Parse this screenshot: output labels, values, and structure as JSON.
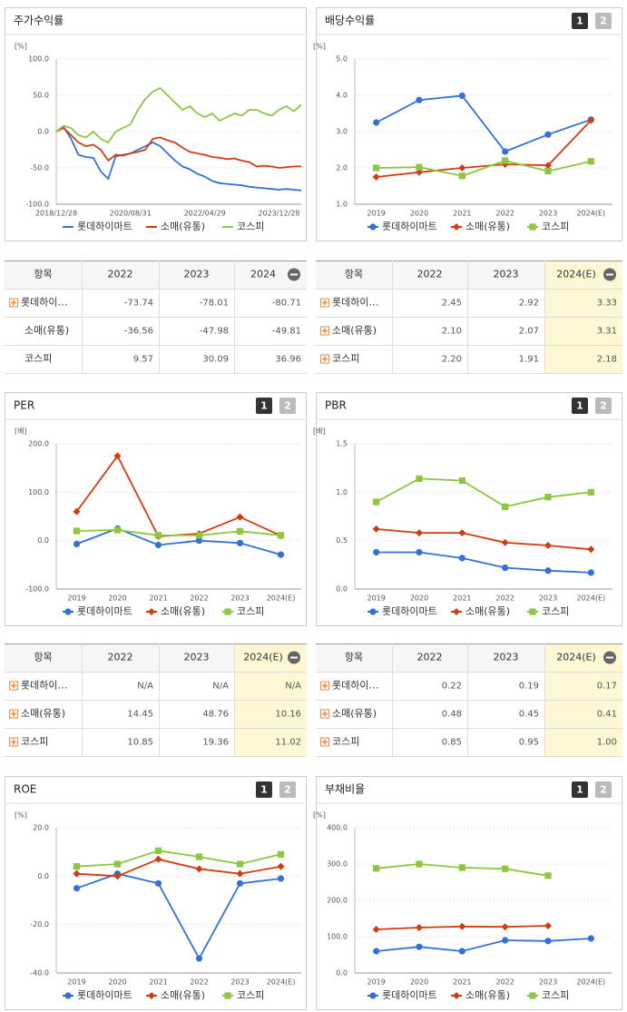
{
  "chart_data": [
    {
      "type": "line",
      "title": "주가수익률",
      "unit_label": "[%]",
      "categories": [
        "2018/12/28",
        null,
        null,
        null,
        null,
        null,
        null,
        null,
        null,
        null,
        "2020/08/31",
        null,
        null,
        null,
        null,
        null,
        null,
        null,
        null,
        null,
        "2022/04/29",
        null,
        null,
        null,
        null,
        null,
        null,
        null,
        null,
        null,
        "2023/12/28",
        null,
        null,
        null
      ],
      "series": [
        {
          "name": "롯데하이마트",
          "color": "#3371d8",
          "values": [
            0,
            6,
            -10,
            -32,
            -35,
            -36,
            -55,
            -65,
            -34,
            -32,
            -30,
            -25,
            -20,
            -15,
            -20,
            -30,
            -40,
            -48,
            -52,
            -58,
            -62,
            -68,
            -71,
            -72,
            -73,
            -74,
            -76,
            -77,
            -78,
            -79,
            -80,
            -79,
            -80,
            -81
          ]
        },
        {
          "name": "소매(유통)",
          "color": "#d23c12",
          "values": [
            0,
            5,
            -5,
            -15,
            -20,
            -18,
            -25,
            -40,
            -32,
            -33,
            -30,
            -28,
            -25,
            -10,
            -8,
            -12,
            -15,
            -22,
            -28,
            -30,
            -32,
            -35,
            -36,
            -38,
            -37,
            -40,
            -42,
            -48,
            -47,
            -48,
            -50,
            -49,
            -48,
            -48
          ]
        },
        {
          "name": "코스피",
          "color": "#8dc63f",
          "values": [
            0,
            8,
            5,
            -5,
            -8,
            0,
            -10,
            -15,
            0,
            5,
            10,
            30,
            45,
            55,
            60,
            50,
            40,
            30,
            35,
            25,
            20,
            25,
            15,
            20,
            25,
            22,
            30,
            30,
            25,
            22,
            30,
            35,
            28,
            37
          ]
        }
      ],
      "ylim": [
        -100,
        100
      ],
      "yticks": [
        {
          "value": -100,
          "label": "-100.0"
        },
        {
          "value": -50,
          "label": "-50.0"
        },
        {
          "value": 0,
          "label": "0.0"
        },
        {
          "value": 50,
          "label": "50.0"
        },
        {
          "value": 100,
          "label": "100.0"
        }
      ],
      "grid": true
    },
    {
      "type": "line",
      "title": "배당수익률",
      "unit_label": "[%]",
      "buttons": [
        "1",
        "2"
      ],
      "categories": [
        "2019",
        "2020",
        "2021",
        "2022",
        "2023",
        "2024(E)"
      ],
      "series": [
        {
          "name": "롯데하이마트",
          "color": "#3371d8",
          "marker": "circle",
          "values": [
            3.25,
            3.87,
            3.99,
            2.45,
            2.92,
            3.33
          ]
        },
        {
          "name": "소매(유통)",
          "color": "#d23c12",
          "marker": "diamond",
          "values": [
            1.75,
            1.88,
            2.0,
            2.1,
            2.07,
            3.31
          ]
        },
        {
          "name": "코스피",
          "color": "#8dc63f",
          "marker": "square",
          "values": [
            2.0,
            2.02,
            1.78,
            2.2,
            1.91,
            2.18
          ]
        }
      ],
      "ylim": [
        1,
        5
      ],
      "yticks": [
        {
          "value": 1,
          "label": "1.0"
        },
        {
          "value": 2,
          "label": "2.0"
        },
        {
          "value": 3,
          "label": "3.0"
        },
        {
          "value": 4,
          "label": "4.0"
        },
        {
          "value": 5,
          "label": "5.0"
        }
      ],
      "grid": true
    },
    {
      "type": "line",
      "title": "PER",
      "unit_label": "[배]",
      "buttons": [
        "1",
        "2"
      ],
      "categories": [
        "2019",
        "2020",
        "2021",
        "2022",
        "2023",
        "2024(E)"
      ],
      "series": [
        {
          "name": "롯데하이마트",
          "color": "#3371d8",
          "marker": "circle",
          "values": [
            -7,
            25,
            -9,
            0,
            -5,
            -29
          ]
        },
        {
          "name": "소매(유통)",
          "color": "#d23c12",
          "marker": "diamond",
          "values": [
            60,
            175,
            9,
            14.45,
            48.76,
            10.16
          ]
        },
        {
          "name": "코스피",
          "color": "#8dc63f",
          "marker": "square",
          "values": [
            20,
            22,
            11,
            10.85,
            19.36,
            11.02
          ]
        }
      ],
      "ylim": [
        -100,
        200
      ],
      "yticks": [
        {
          "value": -100,
          "label": "-100.0"
        },
        {
          "value": 0,
          "label": "0.0"
        },
        {
          "value": 100,
          "label": "100.0"
        },
        {
          "value": 200,
          "label": "200.0"
        }
      ],
      "grid": true
    },
    {
      "type": "line",
      "title": "PBR",
      "unit_label": "[배]",
      "buttons": [
        "1",
        "2"
      ],
      "categories": [
        "2019",
        "2020",
        "2021",
        "2022",
        "2023",
        "2024(E)"
      ],
      "series": [
        {
          "name": "롯데하이마트",
          "color": "#3371d8",
          "marker": "circle",
          "values": [
            0.38,
            0.38,
            0.32,
            0.22,
            0.19,
            0.17
          ]
        },
        {
          "name": "소매(유통)",
          "color": "#d23c12",
          "marker": "diamond",
          "values": [
            0.62,
            0.58,
            0.58,
            0.48,
            0.45,
            0.41
          ]
        },
        {
          "name": "코스피",
          "color": "#8dc63f",
          "marker": "square",
          "values": [
            0.9,
            1.14,
            1.12,
            0.85,
            0.95,
            1.0
          ]
        }
      ],
      "ylim": [
        0,
        1.5
      ],
      "yticks": [
        {
          "value": 0,
          "label": "0.0"
        },
        0.5,
        {
          "value": 1,
          "label": "1.0"
        },
        1.5
      ],
      "grid": true
    },
    {
      "type": "line",
      "title": "ROE",
      "unit_label": "[%]",
      "buttons": [
        "1",
        "2"
      ],
      "categories": [
        "2019",
        "2020",
        "2021",
        "2022",
        "2023",
        "2024(E)"
      ],
      "series": [
        {
          "name": "롯데하이마트",
          "color": "#3371d8",
          "marker": "circle",
          "values": [
            -5,
            1,
            -3,
            -34,
            -3,
            -1
          ]
        },
        {
          "name": "소매(유통)",
          "color": "#d23c12",
          "marker": "diamond",
          "values": [
            1,
            0,
            7,
            3,
            1,
            4
          ]
        },
        {
          "name": "코스피",
          "color": "#8dc63f",
          "marker": "square",
          "values": [
            4,
            5,
            10.5,
            8,
            5,
            9
          ]
        }
      ],
      "ylim": [
        -40,
        20
      ],
      "yticks": [
        {
          "value": -40,
          "label": "-40.0"
        },
        {
          "value": -20,
          "label": "-20.0"
        },
        {
          "value": 0,
          "label": "0.0"
        },
        {
          "value": 20,
          "label": "20.0"
        }
      ],
      "grid": true
    },
    {
      "type": "line",
      "title": "부채비율",
      "unit_label": "[%]",
      "buttons": [
        "1",
        "2"
      ],
      "categories": [
        "2019",
        "2020",
        "2021",
        "2022",
        "2023",
        "2024(E)"
      ],
      "series": [
        {
          "name": "롯데하이마트",
          "color": "#3371d8",
          "marker": "circle",
          "values": [
            60,
            72,
            60,
            90,
            88,
            95
          ]
        },
        {
          "name": "소매(유통)",
          "color": "#d23c12",
          "marker": "diamond",
          "values": [
            120,
            125,
            128,
            127,
            130,
            null
          ]
        },
        {
          "name": "코스피",
          "color": "#8dc63f",
          "marker": "square",
          "values": [
            288,
            300,
            290,
            287,
            268,
            null
          ]
        }
      ],
      "ylim": [
        0,
        400
      ],
      "yticks": [
        {
          "value": 0,
          "label": "0.0"
        },
        {
          "value": 100,
          "label": "100.0"
        },
        {
          "value": 200,
          "label": "200.0"
        },
        {
          "value": 300,
          "label": "300.0"
        },
        {
          "value": 400,
          "label": "400.0"
        }
      ],
      "grid": true
    }
  ],
  "tables": [
    {
      "header": [
        "항목",
        "2022",
        "2023",
        "2024"
      ],
      "rows": [
        [
          "롯데하이…",
          "-73.74",
          "-78.01",
          "-80.71"
        ],
        [
          "소매(유통)",
          "-36.56",
          "-47.98",
          "-49.81"
        ],
        [
          "코스피",
          "9.57",
          "30.09",
          "36.96"
        ]
      ]
    },
    {
      "header": [
        "항목",
        "2022",
        "2023",
        "2024(E)"
      ],
      "rows": [
        [
          "롯데하이…",
          "2.45",
          "2.92",
          "3.33"
        ],
        [
          "소매(유통)",
          "2.10",
          "2.07",
          "3.31"
        ],
        [
          "코스피",
          "2.20",
          "1.91",
          "2.18"
        ]
      ]
    },
    {
      "header": [
        "항목",
        "2022",
        "2023",
        "2024(E)"
      ],
      "rows": [
        [
          "롯데하이…",
          "N/A",
          "N/A",
          "N/A"
        ],
        [
          "소매(유통)",
          "14.45",
          "48.76",
          "10.16"
        ],
        [
          "코스피",
          "10.85",
          "19.36",
          "11.02"
        ]
      ]
    },
    {
      "header": [
        "항목",
        "2022",
        "2023",
        "2024(E)"
      ],
      "rows": [
        [
          "롯데하이…",
          "0.22",
          "0.19",
          "0.17"
        ],
        [
          "소매(유통)",
          "0.48",
          "0.45",
          "0.41"
        ],
        [
          "코스피",
          "0.85",
          "0.95",
          "1.00"
        ]
      ]
    }
  ]
}
